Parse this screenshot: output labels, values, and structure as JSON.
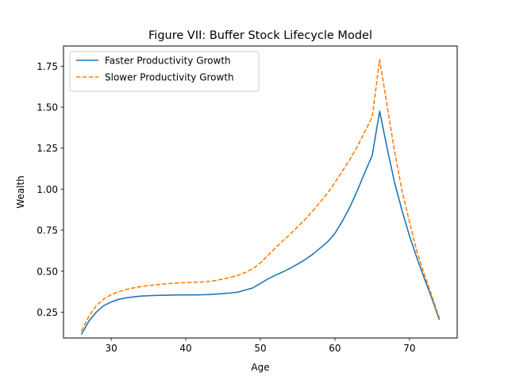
{
  "chart_data": {
    "type": "line",
    "title": "Figure VII: Buffer Stock Lifecycle Model",
    "xlabel": "Age",
    "ylabel": "Wealth",
    "xlim": [
      23.6,
      76.4
    ],
    "ylim": [
      0.0925,
      1.8725
    ],
    "xticks": [
      30,
      40,
      50,
      60,
      70
    ],
    "yticks": [
      0.25,
      0.5,
      0.75,
      1.0,
      1.25,
      1.5,
      1.75
    ],
    "ytick_labels": [
      "0.25",
      "0.50",
      "0.75",
      "1.00",
      "1.25",
      "1.50",
      "1.75"
    ],
    "grid": false,
    "legend_position": "top-left",
    "series": [
      {
        "name": "Faster Productivity Growth",
        "color": "#1f77b4",
        "style": "solid",
        "x": [
          26,
          27,
          28,
          29,
          30,
          31,
          32,
          33,
          34,
          35,
          36,
          37,
          38,
          39,
          40,
          41,
          42,
          43,
          44,
          45,
          46,
          47,
          48,
          49,
          50,
          51,
          52,
          53,
          54,
          55,
          56,
          57,
          58,
          59,
          60,
          61,
          62,
          63,
          64,
          65,
          66,
          67,
          68,
          69,
          70,
          71,
          72,
          73,
          74
        ],
        "y": [
          0.115,
          0.195,
          0.25,
          0.29,
          0.312,
          0.328,
          0.337,
          0.343,
          0.348,
          0.35,
          0.352,
          0.353,
          0.354,
          0.355,
          0.355,
          0.355,
          0.356,
          0.357,
          0.36,
          0.363,
          0.367,
          0.372,
          0.385,
          0.398,
          0.425,
          0.452,
          0.475,
          0.495,
          0.518,
          0.543,
          0.57,
          0.602,
          0.64,
          0.678,
          0.73,
          0.805,
          0.89,
          0.99,
          1.1,
          1.205,
          1.475,
          1.25,
          1.04,
          0.87,
          0.715,
          0.58,
          0.455,
          0.335,
          0.203
        ]
      },
      {
        "name": "Slower Productivity Growth",
        "color": "#ff7f0e",
        "style": "dashed",
        "x": [
          26,
          27,
          28,
          29,
          30,
          31,
          32,
          33,
          34,
          35,
          36,
          37,
          38,
          39,
          40,
          41,
          42,
          43,
          44,
          45,
          46,
          47,
          48,
          49,
          50,
          51,
          52,
          53,
          54,
          55,
          56,
          57,
          58,
          59,
          60,
          61,
          62,
          63,
          64,
          65,
          66,
          67,
          68,
          69,
          70,
          71,
          72,
          73,
          74
        ],
        "y": [
          0.135,
          0.225,
          0.29,
          0.33,
          0.357,
          0.375,
          0.388,
          0.398,
          0.406,
          0.412,
          0.417,
          0.421,
          0.425,
          0.428,
          0.43,
          0.432,
          0.434,
          0.437,
          0.443,
          0.452,
          0.462,
          0.475,
          0.492,
          0.515,
          0.55,
          0.595,
          0.64,
          0.685,
          0.725,
          0.77,
          0.815,
          0.865,
          0.92,
          0.975,
          1.04,
          1.11,
          1.18,
          1.26,
          1.35,
          1.44,
          1.79,
          1.51,
          1.23,
          0.99,
          0.8,
          0.62,
          0.48,
          0.35,
          0.215
        ]
      }
    ]
  }
}
